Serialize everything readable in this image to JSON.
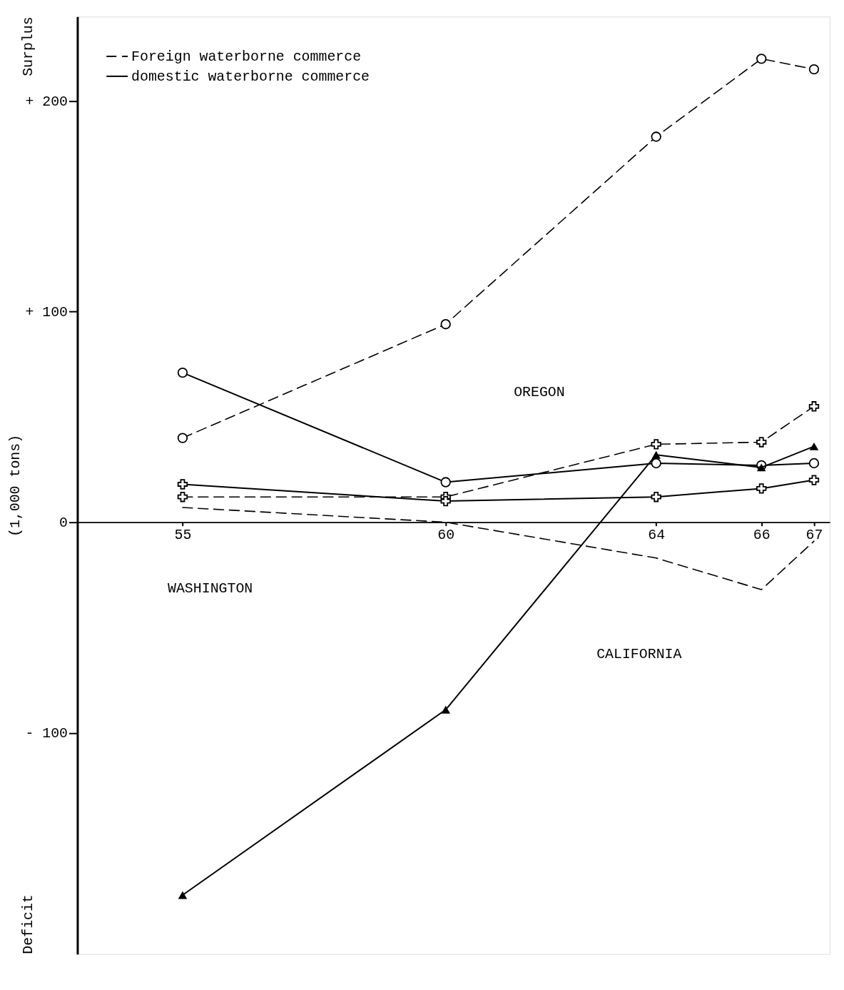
{
  "chart_data": {
    "type": "line",
    "ylabel": "(1,000 tons)",
    "x": [
      55,
      60,
      64,
      66,
      67
    ],
    "xlim": [
      53,
      67.3
    ],
    "xticks": [
      55,
      60,
      64,
      66,
      67
    ],
    "ylim": [
      -205,
      240
    ],
    "yticks": [
      {
        "value": 200,
        "label": "+ 200"
      },
      {
        "value": 100,
        "label": "+ 100"
      },
      0,
      {
        "value": -100,
        "label": "- 100"
      }
    ],
    "grid": false,
    "legend": "top left",
    "series": [
      {
        "name": "Foreign waterborne commerce",
        "color": "#000000",
        "line_style": "dashed",
        "marker": "circle",
        "values": [
          40,
          94,
          183,
          220,
          215
        ]
      },
      {
        "name": "domestic waterborne commerce",
        "color": "#000000",
        "line_style": "solid",
        "marker": "circle",
        "values": [
          71,
          19,
          28,
          27,
          28
        ]
      },
      {
        "color": "#000000",
        "line_style": "dashed",
        "marker": "cross",
        "values": [
          12,
          12,
          37,
          38,
          55
        ]
      },
      {
        "color": "#000000",
        "line_style": "solid",
        "marker": "cross",
        "values": [
          18,
          10,
          12,
          16,
          20
        ]
      },
      {
        "color": "#000000",
        "line_style": "dashed",
        "marker": "none",
        "values": [
          7,
          0,
          -17,
          -32,
          -9
        ]
      },
      {
        "color": "#000000",
        "line_style": "solid",
        "marker": "triangle",
        "values": [
          -177,
          -89,
          32,
          26,
          36
        ]
      }
    ],
    "annotations": [
      "Surplus",
      "Deficit",
      "OREGON",
      "WASHINGTON",
      "CALIFORNIA"
    ]
  }
}
